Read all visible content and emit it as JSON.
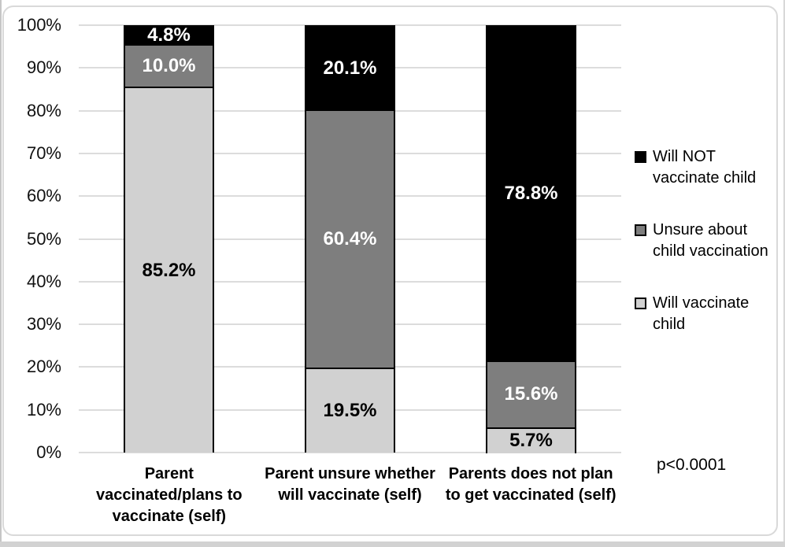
{
  "chart_data": {
    "type": "bar",
    "subtype": "stacked-100-percent-column",
    "title": "",
    "xlabel": "",
    "ylabel": "",
    "ylim": [
      0,
      100
    ],
    "grid": true,
    "legend_position": "right",
    "annotation": "p<0.0001",
    "ytick_labels": [
      "0%",
      "10%",
      "20%",
      "30%",
      "40%",
      "50%",
      "60%",
      "70%",
      "80%",
      "90%",
      "100%"
    ],
    "categories": [
      "Parent\nvaccinated/plans to\nvaccinate (self)",
      "Parent unsure whether\nwill vaccinate (self)",
      "Parents does not plan\nto get vaccinated (self)"
    ],
    "series": [
      {
        "name": "Will vaccinate child",
        "values": [
          85.2,
          19.5,
          5.7
        ],
        "color": "#d1d1d1",
        "label_color": "#000000"
      },
      {
        "name": "Unsure about child vaccination",
        "values": [
          10.0,
          60.4,
          15.6
        ],
        "color": "#7e7e7e",
        "label_color": "#ffffff"
      },
      {
        "name": "Will NOT vaccinate child",
        "values": [
          4.8,
          20.1,
          78.8
        ],
        "color": "#000000",
        "label_color": "#ffffff"
      }
    ]
  },
  "legend": {
    "items": [
      {
        "label": "Will NOT\nvaccinate child",
        "color": "#000000"
      },
      {
        "label": "Unsure about\nchild vaccination",
        "color": "#7e7e7e"
      },
      {
        "label": "Will vaccinate\nchild",
        "color": "#d1d1d1"
      }
    ]
  },
  "colors": {
    "gridline": "#dcdcdc",
    "bar_border": "#000000",
    "frame_border": "#d9d9d9"
  }
}
